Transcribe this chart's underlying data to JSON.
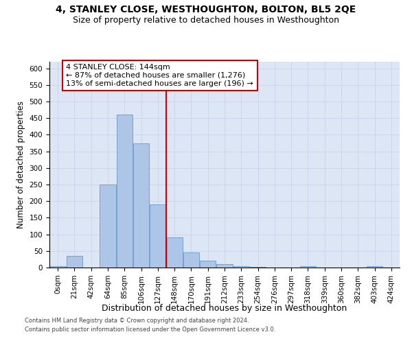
{
  "title": "4, STANLEY CLOSE, WESTHOUGHTON, BOLTON, BL5 2QE",
  "subtitle": "Size of property relative to detached houses in Westhoughton",
  "xlabel": "Distribution of detached houses by size in Westhoughton",
  "ylabel": "Number of detached properties",
  "categories": [
    "0sqm",
    "21sqm",
    "42sqm",
    "64sqm",
    "85sqm",
    "106sqm",
    "127sqm",
    "148sqm",
    "170sqm",
    "191sqm",
    "212sqm",
    "233sqm",
    "254sqm",
    "276sqm",
    "297sqm",
    "318sqm",
    "339sqm",
    "360sqm",
    "382sqm",
    "403sqm",
    "424sqm"
  ],
  "values": [
    4,
    35,
    0,
    250,
    460,
    375,
    190,
    90,
    45,
    20,
    10,
    4,
    2,
    1,
    1,
    4,
    0,
    0,
    0,
    4,
    0
  ],
  "bar_color": "#adc6e8",
  "bar_edge_color": "#6699cc",
  "grid_color": "#c8d4e8",
  "bg_color": "#dde6f5",
  "vline_color": "#cc0000",
  "annotation_text": "4 STANLEY CLOSE: 144sqm\n← 87% of detached houses are smaller (1,276)\n13% of semi-detached houses are larger (196) →",
  "annotation_box_color": "#cc0000",
  "ylim": [
    0,
    620
  ],
  "yticks": [
    0,
    50,
    100,
    150,
    200,
    250,
    300,
    350,
    400,
    450,
    500,
    550,
    600
  ],
  "footnote1": "Contains HM Land Registry data © Crown copyright and database right 2024.",
  "footnote2": "Contains public sector information licensed under the Open Government Licence v3.0.",
  "title_fontsize": 10,
  "subtitle_fontsize": 9,
  "xlabel_fontsize": 9,
  "ylabel_fontsize": 8.5,
  "tick_fontsize": 7.5,
  "annotation_fontsize": 8,
  "footnote_fontsize": 6
}
